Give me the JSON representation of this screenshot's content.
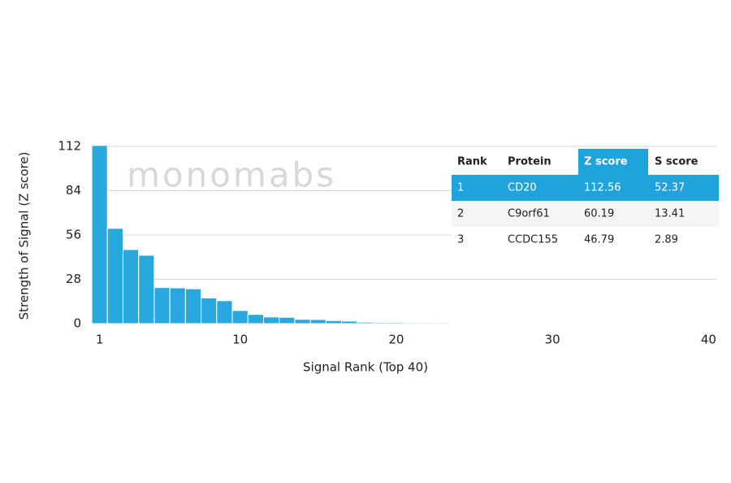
{
  "chart_data": {
    "type": "bar",
    "watermark": "monomabs",
    "x_label": "Signal Rank (Top 40)",
    "y_label": "Strength of Signal (Z score)",
    "x": [
      1,
      2,
      3,
      4,
      5,
      6,
      7,
      8,
      9,
      10,
      11,
      12,
      13,
      14,
      15,
      16,
      17,
      18,
      19,
      20,
      21,
      22,
      23,
      24,
      25,
      26,
      27,
      28,
      29,
      30,
      31,
      32,
      33,
      34,
      35,
      36,
      37,
      38,
      39,
      40
    ],
    "values": [
      112.56,
      60.19,
      46.79,
      43.2,
      22.8,
      22.6,
      22.0,
      16.2,
      14.5,
      8.3,
      5.8,
      4.2,
      4.0,
      2.7,
      2.6,
      1.9,
      1.6,
      0.9,
      0.7,
      0.7,
      0.6,
      0.6,
      0.6,
      0.5,
      0.5,
      0.5,
      0.5,
      0.5,
      0.5,
      0.4,
      0.4,
      0.4,
      0.4,
      0.4,
      0.4,
      0.4,
      0.3,
      0.3,
      0.3,
      0.3
    ],
    "color": "#29a8e0",
    "xlim": [
      0.5,
      40.5
    ],
    "xticks": [
      1,
      10,
      20,
      30,
      40
    ],
    "ylim": [
      0,
      112
    ],
    "yticks": [
      0,
      28,
      56,
      84,
      112
    ],
    "grid": true
  },
  "table": {
    "columns": [
      "Rank",
      "Protein",
      "Z score",
      "S score"
    ],
    "rows": [
      [
        "1",
        "CD20",
        "112.56",
        "52.37"
      ],
      [
        "2",
        "C9orf61",
        "60.19",
        "13.41"
      ],
      [
        "3",
        "CCDC155",
        "46.79",
        "2.89"
      ]
    ],
    "highlight_color": "#1fa3dc"
  }
}
